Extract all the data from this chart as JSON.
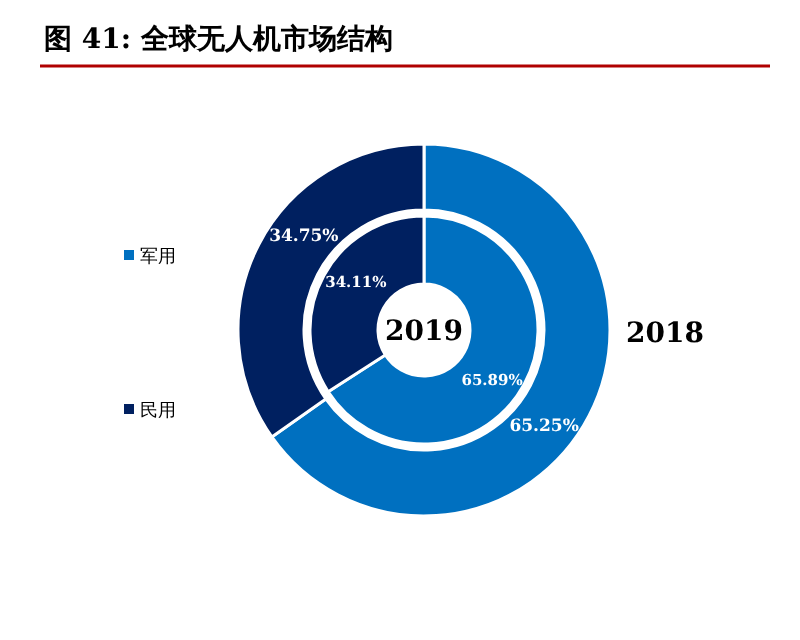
{
  "chart_data": {
    "type": "donut",
    "title": "图 41: 全球无人机市场结构",
    "categories": [
      "军用",
      "民用"
    ],
    "colors": [
      "#0070c0",
      "#002060"
    ],
    "series": [
      {
        "name": "2018",
        "values": [
          65.25,
          34.75
        ],
        "value_labels": [
          "65.25%",
          "34.75%"
        ]
      },
      {
        "name": "2019",
        "values": [
          65.89,
          34.11
        ],
        "value_labels": [
          "65.89%",
          "34.11%"
        ]
      }
    ],
    "legend": "left"
  }
}
